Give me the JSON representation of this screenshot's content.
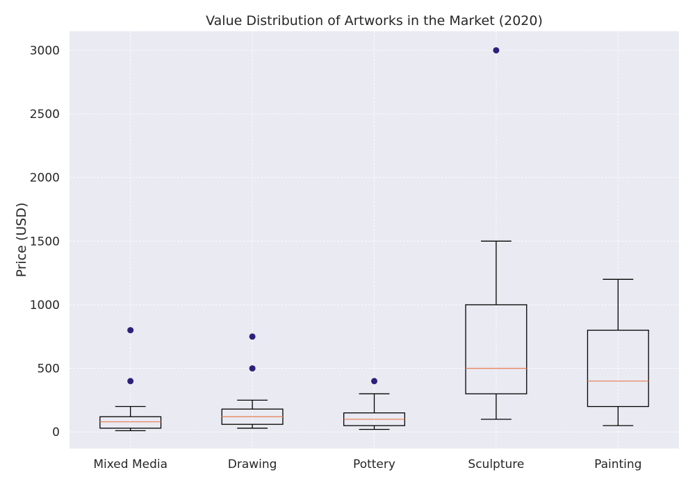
{
  "chart_data": {
    "type": "box",
    "title": "Value Distribution of Artworks in the Market (2020)",
    "xlabel": "",
    "ylabel": "Price (USD)",
    "ylim": [
      -130,
      3150
    ],
    "yticks": [
      0,
      500,
      1000,
      1500,
      2000,
      2500,
      3000
    ],
    "grid": true,
    "categories": [
      "Mixed Media",
      "Drawing",
      "Pottery",
      "Sculpture",
      "Painting"
    ],
    "boxes": [
      {
        "category": "Mixed Media",
        "whisker_low": 10,
        "q1": 30,
        "median": 80,
        "q3": 120,
        "whisker_high": 200,
        "outliers": [
          400,
          800
        ]
      },
      {
        "category": "Drawing",
        "whisker_low": 30,
        "q1": 60,
        "median": 120,
        "q3": 180,
        "whisker_high": 250,
        "outliers": [
          500,
          750
        ]
      },
      {
        "category": "Pottery",
        "whisker_low": 20,
        "q1": 50,
        "median": 100,
        "q3": 150,
        "whisker_high": 300,
        "outliers": [
          400
        ]
      },
      {
        "category": "Sculpture",
        "whisker_low": 100,
        "q1": 300,
        "median": 500,
        "q3": 1000,
        "whisker_high": 1500,
        "outliers": [
          3000
        ]
      },
      {
        "category": "Painting",
        "whisker_low": 50,
        "q1": 200,
        "median": 400,
        "q3": 800,
        "whisker_high": 1200,
        "outliers": []
      }
    ],
    "colors": {
      "plot_bg": "#EAEAF2",
      "grid": "#FFFFFF",
      "box_line": "#000000",
      "median": "#E8855C",
      "outlier": "#2E1F7C",
      "text": "#262626"
    }
  }
}
